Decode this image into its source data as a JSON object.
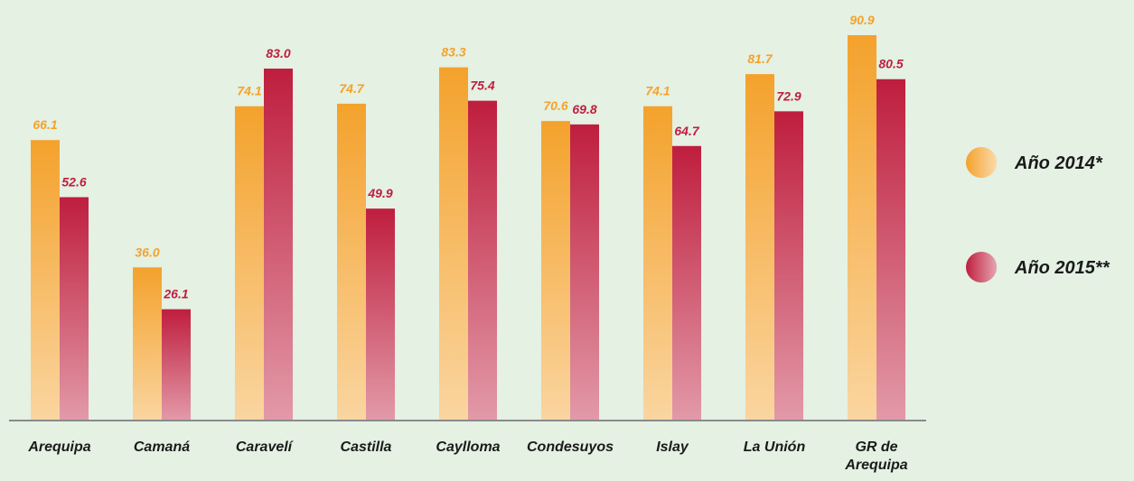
{
  "chart_data": {
    "type": "bar",
    "categories": [
      "Arequipa",
      "Camaná",
      "Caravelí",
      "Castilla",
      "Caylloma",
      "Condesuyos",
      "Islay",
      "La Unión",
      "GR de Arequipa"
    ],
    "series": [
      {
        "name": "Año 2014*",
        "color": "#f4a22c",
        "values": [
          66.1,
          36,
          74.1,
          74.7,
          83.3,
          70.6,
          74.1,
          81.7,
          90.9
        ],
        "value_labels": [
          "66.1",
          "36.0",
          "74.1",
          "74.7",
          "83.3",
          "70.6",
          "74.1",
          "81.7",
          "90.9"
        ]
      },
      {
        "name": "Año 2015**",
        "color": "#bf1e3e",
        "values": [
          52.6,
          26.1,
          83,
          49.9,
          75.4,
          69.8,
          64.7,
          72.9,
          80.5
        ],
        "value_labels": [
          "52.6",
          "26.1",
          "83.0",
          "49.9",
          "75.4",
          "69.8",
          "64.7",
          "72.9",
          "80.5"
        ]
      }
    ],
    "legend": "right"
  }
}
